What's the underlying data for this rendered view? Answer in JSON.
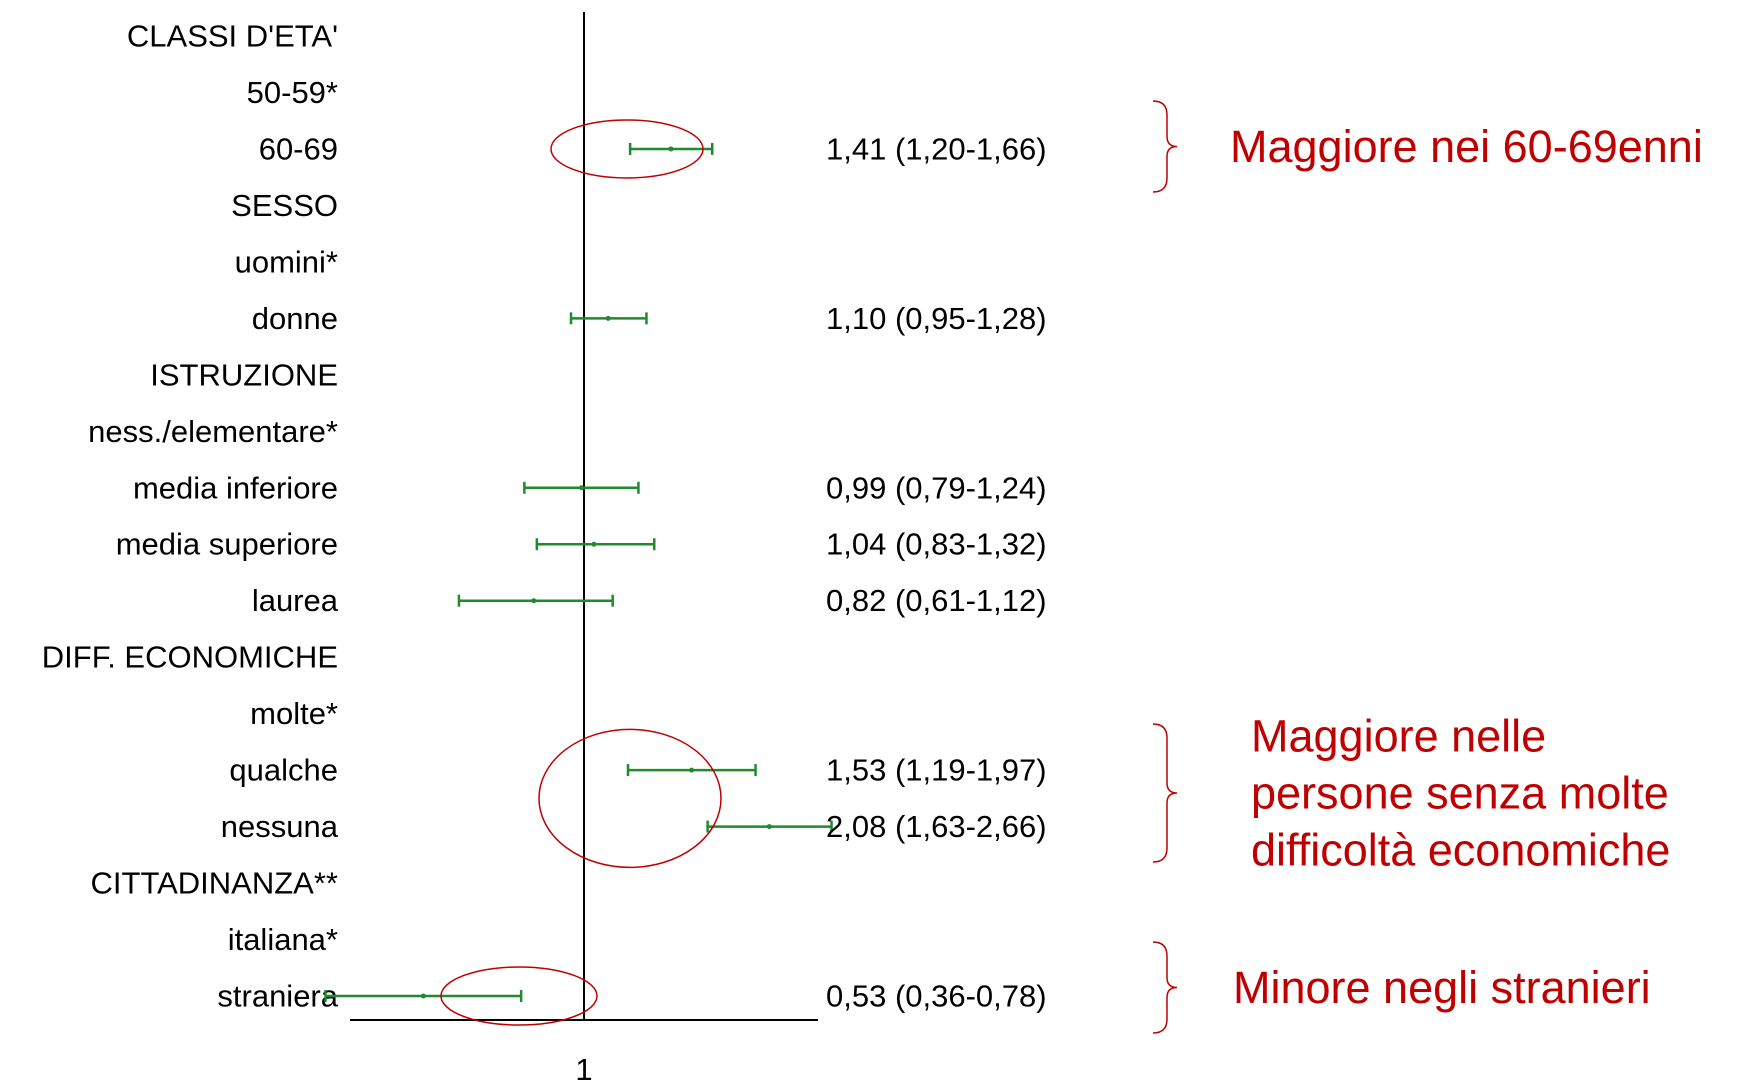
{
  "colors": {
    "ci": "#1f8a2e",
    "annotation": "#c00000",
    "axis": "#000000",
    "text": "#000000"
  },
  "chart_data": {
    "type": "forest",
    "x_scale": "log",
    "reference_value": 1,
    "xticks": [
      "1"
    ],
    "rows": [
      {
        "label": "CLASSI D'ETA'",
        "kind": "header"
      },
      {
        "label": "50-59*",
        "kind": "reference"
      },
      {
        "label": "60-69",
        "or": 1.41,
        "lo": 1.2,
        "hi": 1.66,
        "text": "1,41 (1,20-1,66)"
      },
      {
        "label": "SESSO",
        "kind": "header"
      },
      {
        "label": "uomini*",
        "kind": "reference"
      },
      {
        "label": "donne",
        "or": 1.1,
        "lo": 0.95,
        "hi": 1.28,
        "text": "1,10 (0,95-1,28)"
      },
      {
        "label": "ISTRUZIONE",
        "kind": "header"
      },
      {
        "label": "ness./elementare*",
        "kind": "reference"
      },
      {
        "label": "media inferiore",
        "or": 0.99,
        "lo": 0.79,
        "hi": 1.24,
        "text": "0,99 (0,79-1,24)"
      },
      {
        "label": "media superiore",
        "or": 1.04,
        "lo": 0.83,
        "hi": 1.32,
        "text": "1,04 (0,83-1,32)"
      },
      {
        "label": "laurea",
        "or": 0.82,
        "lo": 0.61,
        "hi": 1.12,
        "text": "0,82 (0,61-1,12)"
      },
      {
        "label": "DIFF. ECONOMICHE",
        "kind": "header"
      },
      {
        "label": "molte*",
        "kind": "reference"
      },
      {
        "label": "qualche",
        "or": 1.53,
        "lo": 1.19,
        "hi": 1.97,
        "text": "1,53 (1,19-1,97)"
      },
      {
        "label": "nessuna",
        "or": 2.08,
        "lo": 1.63,
        "hi": 2.66,
        "text": "2,08 (1,63-2,66)"
      },
      {
        "label": "CITTADINANZA**",
        "kind": "header"
      },
      {
        "label": "italiana*",
        "kind": "reference"
      },
      {
        "label": "straniera",
        "or": 0.53,
        "lo": 0.36,
        "hi": 0.78,
        "text": "0,53 (0,36-0,78)"
      }
    ],
    "annotations": [
      {
        "lines": [
          "Maggiore nei 60-69enni"
        ],
        "rows": [
          "60-69"
        ]
      },
      {
        "lines": [
          "Maggiore nelle",
          "persone senza molte",
          "difficoltà economiche"
        ],
        "rows": [
          "qualche",
          "nessuna"
        ]
      },
      {
        "lines": [
          "Minore negli stranieri"
        ],
        "rows": [
          "straniera"
        ]
      }
    ]
  }
}
